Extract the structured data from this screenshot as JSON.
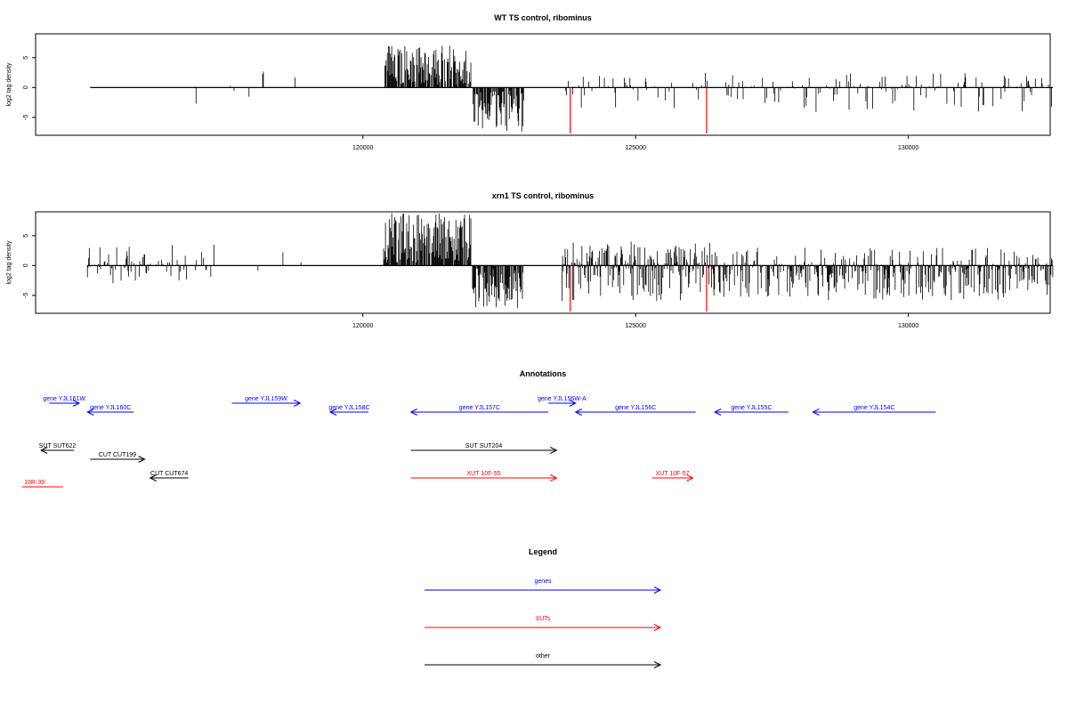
{
  "chart_data": [
    {
      "type": "bar",
      "title": "WT TS control, ribominus",
      "xlabel": "",
      "ylabel": "log2 tag density",
      "xlim": [
        114000,
        132600
      ],
      "ylim": [
        -8,
        9
      ],
      "xticks": [
        120000,
        125000,
        130000
      ],
      "xtick_labels": [
        "120000",
        "125000",
        "130000"
      ],
      "yticks": [
        -5,
        0,
        5
      ],
      "ytick_labels": [
        "-5",
        "0",
        "5"
      ],
      "grid": false,
      "spikes": {
        "color": "#ff0000",
        "x": [
          123800,
          126300
        ],
        "values": [
          -7.7,
          -7.7
        ]
      },
      "segments": [
        {
          "start": 115000,
          "end": 120300,
          "color": "#000000",
          "density": 0.015,
          "min": -3,
          "max": 3,
          "bias": 0
        },
        {
          "start": 120380,
          "end": 121990,
          "color": "#000000",
          "density": 0.8,
          "min": 0.5,
          "max": 7,
          "bias": 1
        },
        {
          "start": 122010,
          "end": 122950,
          "color": "#000000",
          "density": 0.8,
          "min": -7.5,
          "max": -0.5,
          "bias": -1
        },
        {
          "start": 123650,
          "end": 126400,
          "color": "#000000",
          "density": 0.2,
          "min": -3.5,
          "max": 2.5,
          "bias": 0
        },
        {
          "start": 126400,
          "end": 132650,
          "color": "#000000",
          "density": 0.25,
          "min": -4.5,
          "max": 2.5,
          "bias": 0
        }
      ]
    },
    {
      "type": "bar",
      "title": "xrn1 TS control, ribominus",
      "xlabel": "",
      "ylabel": "log2 tag density",
      "xlim": [
        114000,
        132600
      ],
      "ylim": [
        -8,
        9
      ],
      "xticks": [
        120000,
        125000,
        130000
      ],
      "xtick_labels": [
        "120000",
        "125000",
        "130000"
      ],
      "yticks": [
        -5,
        0,
        5
      ],
      "ytick_labels": [
        "-5",
        "0",
        "5"
      ],
      "grid": false,
      "spikes": {
        "color": "#ff0000",
        "x": [
          123800,
          126300
        ],
        "values": [
          -7.7,
          -7.7
        ]
      },
      "segments": [
        {
          "start": 114950,
          "end": 117300,
          "color": "#000000",
          "density": 0.3,
          "min": -3,
          "max": 3.5,
          "bias": 0
        },
        {
          "start": 117300,
          "end": 120300,
          "color": "#000000",
          "density": 0.02,
          "min": -2.5,
          "max": 3,
          "bias": 0
        },
        {
          "start": 120380,
          "end": 121990,
          "color": "#000000",
          "density": 0.9,
          "min": 0.5,
          "max": 8.8,
          "bias": 1
        },
        {
          "start": 122010,
          "end": 122950,
          "color": "#000000",
          "density": 0.8,
          "min": -7.3,
          "max": -0.5,
          "bias": -1
        },
        {
          "start": 123650,
          "end": 126400,
          "color": "#000000",
          "density": 0.85,
          "min": -6,
          "max": 4,
          "bias": 0
        },
        {
          "start": 126400,
          "end": 132650,
          "color": "#000000",
          "density": 0.7,
          "min": -5.8,
          "max": 3,
          "bias": -0.4
        }
      ]
    }
  ],
  "annotations": {
    "title": "Annotations",
    "xlim": [
      114000,
      132600
    ],
    "features": [
      {
        "label": "gene YJL161W",
        "start": 114250,
        "end": 114800,
        "strand": "+",
        "row": 0,
        "color": "#0000ff"
      },
      {
        "label": "gene YJL160C",
        "start": 114950,
        "end": 115800,
        "strand": "-",
        "row": 1,
        "color": "#0000ff"
      },
      {
        "label": "gene YJL159W",
        "start": 117600,
        "end": 118850,
        "strand": "+",
        "row": 0,
        "color": "#0000ff"
      },
      {
        "label": "gene YJL158C",
        "start": 119400,
        "end": 120100,
        "strand": "-",
        "row": 1,
        "color": "#0000ff"
      },
      {
        "label": "gene YJL157C",
        "start": 120880,
        "end": 123400,
        "strand": "-",
        "row": 1,
        "color": "#0000ff"
      },
      {
        "label": "gene YJL156W-A",
        "start": 123400,
        "end": 123900,
        "strand": "+",
        "row": 0,
        "color": "#0000ff"
      },
      {
        "label": "gene YJL156C",
        "start": 123900,
        "end": 126100,
        "strand": "-",
        "row": 1,
        "color": "#0000ff"
      },
      {
        "label": "gene YJL155C",
        "start": 126450,
        "end": 127800,
        "strand": "-",
        "row": 1,
        "color": "#0000ff"
      },
      {
        "label": "gene YJL154C",
        "start": 128250,
        "end": 130500,
        "strand": "-",
        "row": 1,
        "color": "#0000ff"
      },
      {
        "label": "SUT SUT622",
        "start": 114100,
        "end": 114700,
        "strand": "-",
        "row": 2,
        "color": "#000000"
      },
      {
        "label": "CUT CUT199",
        "start": 115000,
        "end": 116000,
        "strand": "+",
        "row": 3,
        "color": "#000000"
      },
      {
        "label": "CUT CUT674",
        "start": 116100,
        "end": 116800,
        "strand": "-",
        "row": 4,
        "color": "#000000"
      },
      {
        "label": "SUT SUT204",
        "start": 120880,
        "end": 123550,
        "strand": "+",
        "row": 2,
        "color": "#000000"
      },
      {
        "label": "10R-39",
        "start": 113750,
        "end": 114500,
        "strand": "none",
        "row": 5,
        "color": "#ff0000"
      },
      {
        "label": "XUT 10F-55",
        "start": 120880,
        "end": 123550,
        "strand": "+",
        "row": 4,
        "color": "#ff0000"
      },
      {
        "label": "XUT 10F-57",
        "start": 125300,
        "end": 126050,
        "strand": "+",
        "row": 4,
        "color": "#ff0000"
      }
    ]
  },
  "legend": {
    "title": "Legend",
    "items": [
      {
        "label": "genes",
        "color": "#0000ff"
      },
      {
        "label": "XUTs",
        "color": "#ff0000"
      },
      {
        "label": "other",
        "color": "#000000"
      }
    ]
  }
}
